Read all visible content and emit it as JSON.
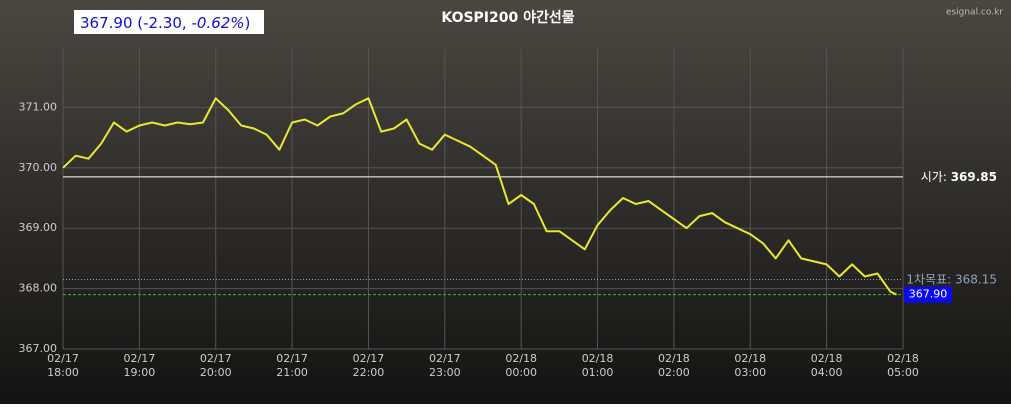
{
  "chart_data": {
    "type": "line",
    "title": "KOSPI200 야간선물",
    "source": "esignal.co.kr",
    "quote": [
      "367.90 (-2.30,",
      "-0.62%",
      ")"
    ],
    "xlim": [
      "02/17 18:00",
      "02/18 05:00"
    ],
    "xticks": [
      "02/17 18:00",
      "02/17 19:00",
      "02/17 20:00",
      "02/17 21:00",
      "02/17 22:00",
      "02/17 23:00",
      "02/18 00:00",
      "02/18 01:00",
      "02/18 02:00",
      "02/18 03:00",
      "02/18 04:00",
      "02/18 05:00"
    ],
    "ylim": [
      367,
      372
    ],
    "yticks": [
      {
        "value": 367,
        "label": "367.00"
      },
      {
        "value": 368,
        "label": "368.00"
      },
      {
        "value": 369,
        "label": "369.00"
      },
      {
        "value": 370,
        "label": "370.00"
      },
      {
        "value": 371,
        "label": "371.00"
      }
    ],
    "grid": true,
    "series": [
      {
        "color": "#e8e832",
        "x": [
          "02/17 18:00",
          "02/17 18:10",
          "02/17 18:20",
          "02/17 18:30",
          "02/17 18:40",
          "02/17 18:50",
          "02/17 19:00",
          "02/17 19:10",
          "02/17 19:20",
          "02/17 19:30",
          "02/17 19:40",
          "02/17 19:50",
          "02/17 20:00",
          "02/17 20:10",
          "02/17 20:20",
          "02/17 20:30",
          "02/17 20:40",
          "02/17 20:50",
          "02/17 21:00",
          "02/17 21:10",
          "02/17 21:20",
          "02/17 21:30",
          "02/17 21:40",
          "02/17 21:50",
          "02/17 22:00",
          "02/17 22:10",
          "02/17 22:20",
          "02/17 22:30",
          "02/17 22:40",
          "02/17 22:50",
          "02/17 23:00",
          "02/17 23:10",
          "02/17 23:20",
          "02/17 23:30",
          "02/17 23:40",
          "02/17 23:50",
          "02/18 00:00",
          "02/18 00:10",
          "02/18 00:20",
          "02/18 00:30",
          "02/18 00:40",
          "02/18 00:50",
          "02/18 01:00",
          "02/18 01:10",
          "02/18 01:20",
          "02/18 01:30",
          "02/18 01:40",
          "02/18 01:50",
          "02/18 02:00",
          "02/18 02:10",
          "02/18 02:20",
          "02/18 02:30",
          "02/18 02:40",
          "02/18 02:50",
          "02/18 03:00",
          "02/18 03:10",
          "02/18 03:20",
          "02/18 03:30",
          "02/18 03:40",
          "02/18 03:50",
          "02/18 04:00",
          "02/18 04:10",
          "02/18 04:20",
          "02/18 04:30",
          "02/18 04:40",
          "02/18 04:50",
          "02/18 04:55"
        ],
        "values": [
          370.0,
          370.2,
          370.15,
          370.4,
          370.75,
          370.6,
          370.7,
          370.75,
          370.7,
          370.75,
          370.72,
          370.75,
          371.15,
          370.95,
          370.7,
          370.65,
          370.55,
          370.3,
          370.75,
          370.8,
          370.7,
          370.85,
          370.9,
          371.05,
          371.15,
          370.6,
          370.65,
          370.8,
          370.4,
          370.3,
          370.55,
          370.45,
          370.35,
          370.2,
          370.05,
          369.4,
          369.55,
          369.4,
          368.95,
          368.95,
          368.8,
          368.65,
          369.05,
          369.3,
          369.5,
          369.4,
          369.45,
          369.3,
          369.15,
          369.0,
          369.2,
          369.25,
          369.1,
          369.0,
          368.9,
          368.75,
          368.5,
          368.8,
          368.5,
          368.45,
          368.4,
          368.2,
          368.4,
          368.2,
          368.25,
          367.95,
          367.9
        ]
      }
    ],
    "reference_lines": [
      {
        "label": "시가:",
        "value": 369.85,
        "value_label": "369.85",
        "color": "#ffffff",
        "style": "solid"
      },
      {
        "label": "1차목표:",
        "value": 368.15,
        "value_label": "368.15",
        "color": "#8ea4b8",
        "style": "dotted"
      },
      {
        "value": 367.9,
        "value_label": "367.90",
        "color": "#3cb43c",
        "style": "dashed",
        "box": "#0a0aee"
      }
    ]
  }
}
